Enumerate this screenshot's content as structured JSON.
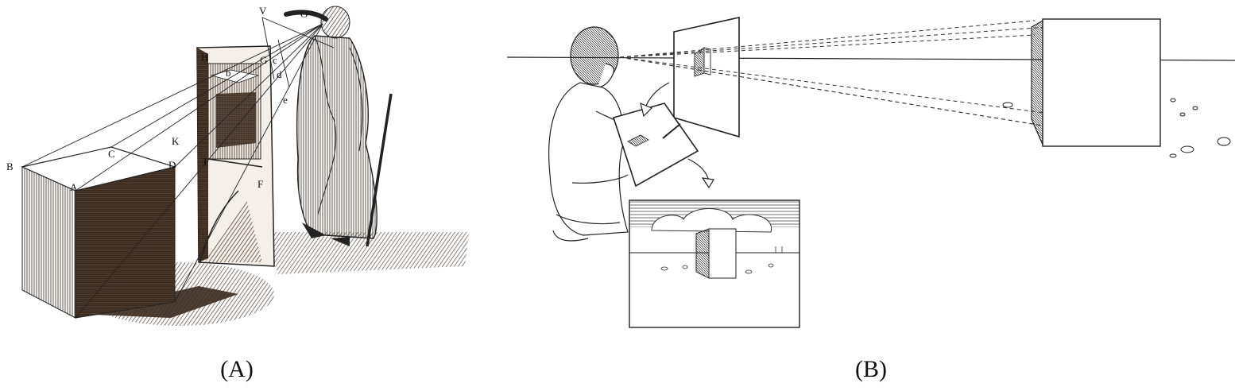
{
  "panel_a": {
    "caption": "(A)",
    "point_labels": [
      "V",
      "O",
      "H",
      "G",
      "b",
      "c",
      "d",
      "e",
      "B",
      "C",
      "K",
      "D",
      "A",
      "I",
      "F"
    ]
  },
  "panel_b": {
    "caption": "(B)"
  },
  "colors": {
    "ink": "#111111",
    "sepia": "#3a2a1e",
    "hatch": "#2b2b2b"
  }
}
